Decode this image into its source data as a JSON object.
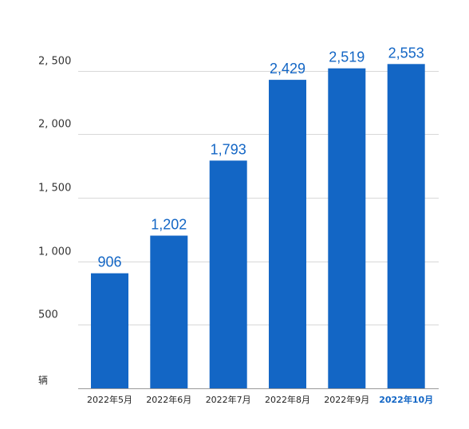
{
  "chart_data": {
    "type": "bar",
    "title": "",
    "xlabel": "",
    "ylabel": "",
    "unit": "辆",
    "categories": [
      "2022年5月",
      "2022年6月",
      "2022年7月",
      "2022年8月",
      "2022年9月",
      "2022年10月"
    ],
    "values": [
      906,
      1202,
      1793,
      2429,
      2519,
      2553
    ],
    "value_labels": [
      "906",
      "1,202",
      "1,793",
      "2,429",
      "2,519",
      "2,553"
    ],
    "y_ticks": [
      {
        "value": 500,
        "label": "500"
      },
      {
        "value": 1000,
        "label": "1, 000"
      },
      {
        "value": 1500,
        "label": "1, 500"
      },
      {
        "value": 2000,
        "label": "2, 000"
      },
      {
        "value": 2500,
        "label": "2, 500"
      }
    ],
    "ylim": [
      0,
      2500
    ],
    "grid": true,
    "legend": "none",
    "bar_color": "#1366c5",
    "highlight_category_color": "#1366c5",
    "highlighted_category_index": 5
  }
}
